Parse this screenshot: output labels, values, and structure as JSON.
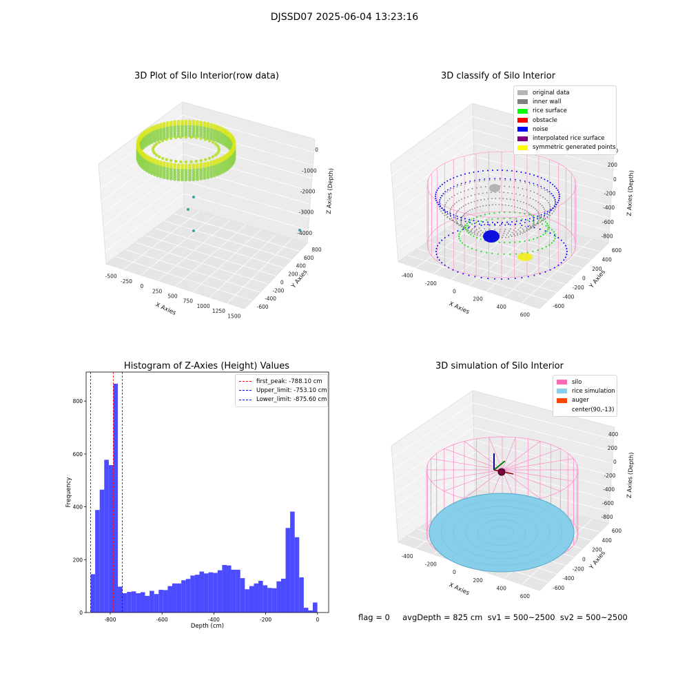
{
  "suptitle": "DJSSD07 2025-06-04 13:23:16",
  "panel1": {
    "title": "3D Plot of Silo Interior(row data)",
    "xlabel": "X Axies",
    "ylabel": "Y Axies",
    "zlabel": "Z Axies (Depth)",
    "xticks": [
      "-500",
      "-250",
      "0",
      "250",
      "500",
      "750",
      "1000",
      "1250",
      "1500"
    ],
    "yticks": [
      "800",
      "600",
      "400",
      "200",
      "0",
      "-200",
      "-400",
      "-600"
    ],
    "zticks": [
      "0",
      "-1000",
      "-2000",
      "-3000",
      "-4000"
    ],
    "colors": {
      "ring": "#8ed24a",
      "ring_top": "#d7e61a",
      "points": "#3aa3a0"
    }
  },
  "panel2": {
    "title": "3D classify of Silo Interior",
    "xlabel": "X Axies",
    "ylabel": "Y Axies",
    "zlabel": "Z Axies (Depth)",
    "xticks": [
      "-400",
      "-200",
      "0",
      "200",
      "400",
      "600"
    ],
    "yticks": [
      "600",
      "400",
      "200",
      "0",
      "-200",
      "-400",
      "-600"
    ],
    "zticks": [
      "400",
      "200",
      "0",
      "-200",
      "-400",
      "-600",
      "-800"
    ],
    "legend": [
      {
        "label": "original data",
        "color": "#b4b4b4"
      },
      {
        "label": "inner wall",
        "color": "#808080"
      },
      {
        "label": "rice surface",
        "color": "#00ff00"
      },
      {
        "label": "obstacle",
        "color": "#ff0000"
      },
      {
        "label": "noise",
        "color": "#0000ff"
      },
      {
        "label": "interpolated rice surface",
        "color": "#800080"
      },
      {
        "label": "symmetric generated points",
        "color": "#ffff00"
      }
    ]
  },
  "panel4": {
    "title": "3D simulation of Silo Interior",
    "xlabel": "X Axies",
    "ylabel": "Y Axies",
    "zlabel": "Z Axies (Depth)",
    "xticks": [
      "-400",
      "-200",
      "0",
      "200",
      "400",
      "600"
    ],
    "yticks": [
      "600",
      "400",
      "200",
      "0",
      "-200",
      "-400",
      "-600"
    ],
    "zticks": [
      "400",
      "200",
      "0",
      "-200",
      "-400",
      "-600",
      "-800"
    ],
    "legend": [
      {
        "label": "silo",
        "color": "#ff69b4"
      },
      {
        "label": "rice simulation",
        "color": "#87ceeb"
      },
      {
        "label": "auger",
        "color": "#ff4500"
      },
      {
        "label": "center(90,-13)",
        "color": "#ffffff"
      }
    ]
  },
  "status_line": "flag = 0     avgDepth = 825 cm  sv1 = 500~2500  sv2 = 500~2500",
  "chart_data": [
    {
      "type": "bar",
      "title": "Histogram of Z-Axies (Height) Values",
      "xlabel": "Depth (cm)",
      "ylabel": "Frequency",
      "bar_color": "#4b4bff",
      "xlim": [
        -893,
        43
      ],
      "ylim": [
        0,
        910
      ],
      "bin_width": 17.5,
      "bin_start": -875.6,
      "xticks": [
        -800,
        -600,
        -400,
        -200,
        0
      ],
      "yticks": [
        0,
        200,
        400,
        600,
        800
      ],
      "values": [
        145,
        388,
        465,
        578,
        558,
        866,
        98,
        73,
        78,
        80,
        73,
        77,
        63,
        82,
        70,
        86,
        85,
        100,
        110,
        110,
        122,
        127,
        140,
        143,
        155,
        148,
        152,
        150,
        160,
        180,
        178,
        162,
        162,
        130,
        88,
        100,
        110,
        120,
        103,
        93,
        92,
        118,
        128,
        320,
        382,
        285,
        133,
        18,
        8,
        38
      ],
      "lines": [
        {
          "label": "first_peak: -788.10 cm",
          "x": -788.1,
          "color": "#ff0000"
        },
        {
          "label": "Upper_limit: -753.10 cm",
          "x": -753.1,
          "color": "#0000ff"
        },
        {
          "label": "Lower_limit: -875.60 cm",
          "x": -875.6,
          "color": "#0000ff"
        }
      ]
    }
  ]
}
